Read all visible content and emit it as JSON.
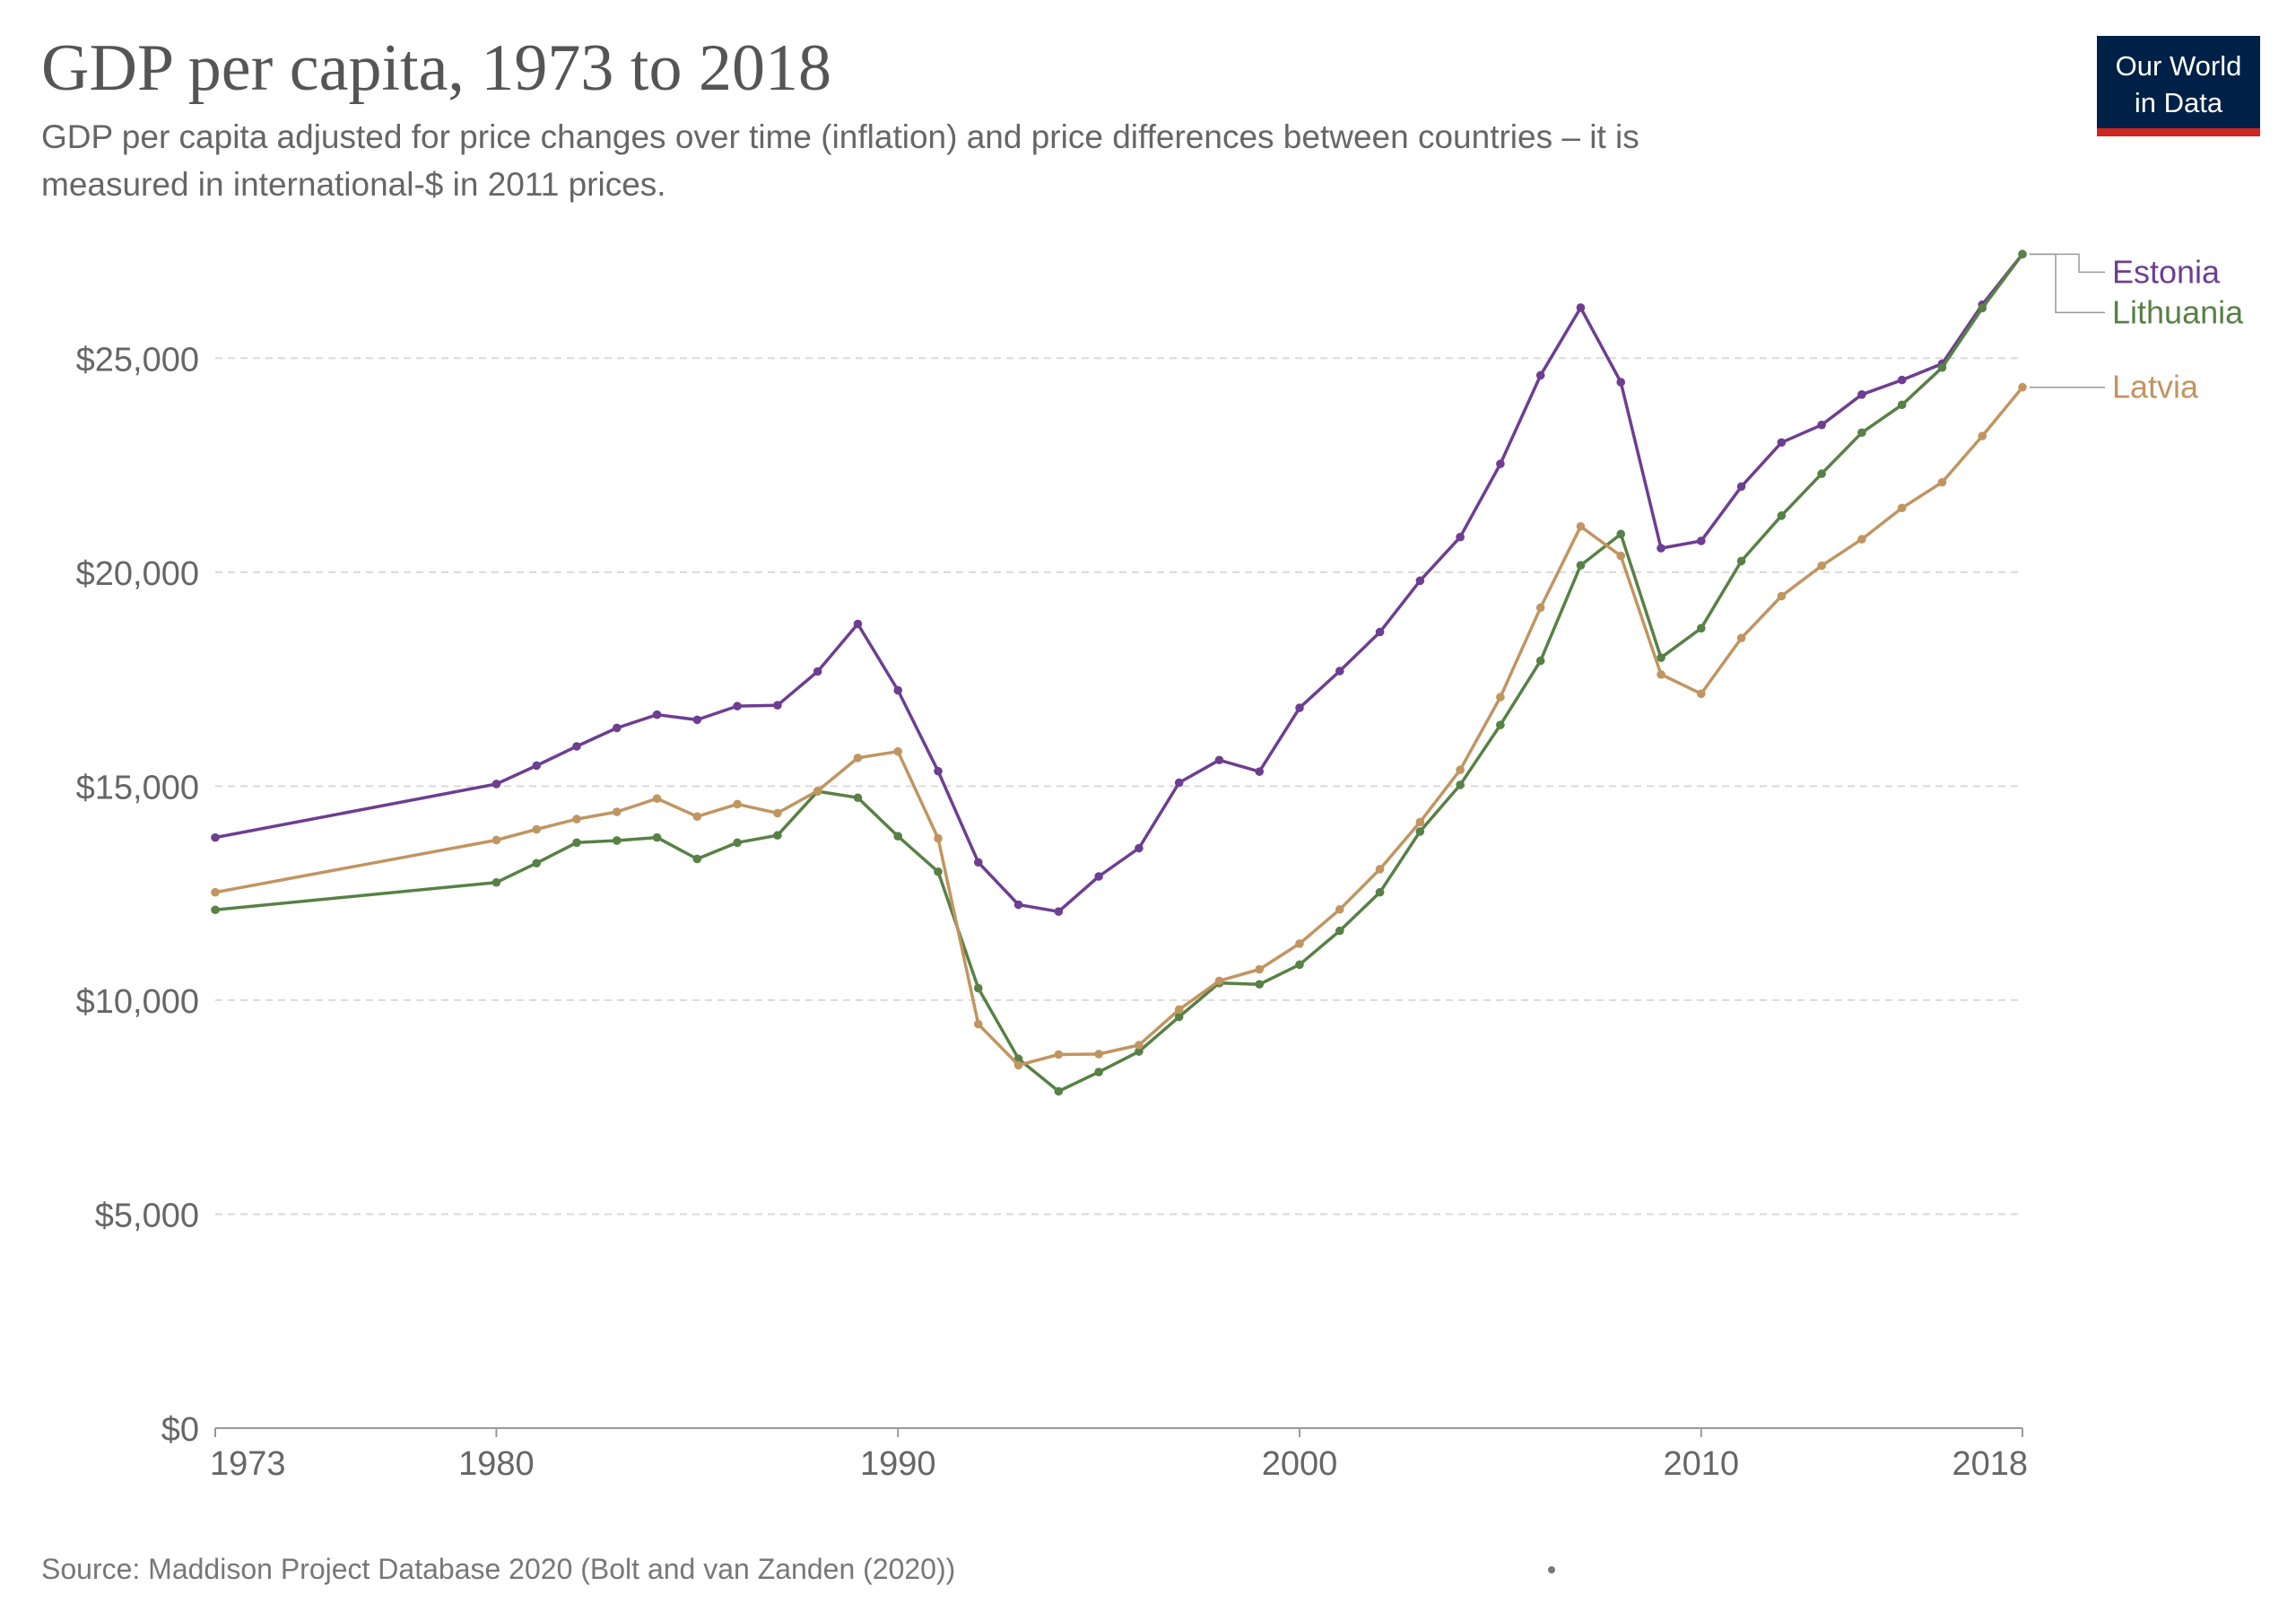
{
  "header": {
    "title": "GDP per capita, 1973 to 2018",
    "subtitle_line1": "GDP per capita adjusted for price changes over time (inflation) and price differences between countries – it is",
    "subtitle_line2": "measured in international-$ in 2011 prices."
  },
  "logo": {
    "line1": "Our World",
    "line2": "in Data",
    "bg_color": "#002147",
    "accent_color": "#ce261e"
  },
  "footer": {
    "source": "Source: Maddison Project Database 2020 (Bolt and van Zanden (2020))"
  },
  "chart_data": {
    "type": "line",
    "title": "GDP per capita, 1973 to 2018",
    "xlabel": "",
    "ylabel": "",
    "xlim": [
      1973,
      2018
    ],
    "ylim": [
      0,
      27500
    ],
    "grid": "horizontal dashed",
    "legend_placement": "right (end of lines)",
    "x_ticks": [
      1973,
      1980,
      1990,
      2000,
      2010,
      2018
    ],
    "x_tick_labels": [
      "1973",
      "1980",
      "1990",
      "2000",
      "2010",
      "2018"
    ],
    "y_ticks": [
      0,
      5000,
      10000,
      15000,
      20000,
      25000
    ],
    "y_tick_labels": [
      "$0",
      "$5,000",
      "$10,000",
      "$15,000",
      "$20,000",
      "$25,000"
    ],
    "x": [
      1973,
      1980,
      1981,
      1982,
      1983,
      1984,
      1985,
      1986,
      1987,
      1988,
      1989,
      1990,
      1991,
      1992,
      1993,
      1994,
      1995,
      1996,
      1997,
      1998,
      1999,
      2000,
      2001,
      2002,
      2003,
      2004,
      2005,
      2006,
      2007,
      2008,
      2009,
      2010,
      2011,
      2012,
      2013,
      2014,
      2015,
      2016,
      2017,
      2018
    ],
    "series": [
      {
        "name": "Estonia",
        "color": "#6d3e91",
        "values": [
          13800,
          15050,
          15480,
          15930,
          16360,
          16670,
          16550,
          16870,
          16890,
          17680,
          18790,
          17240,
          15350,
          13220,
          12230,
          12070,
          12890,
          13550,
          15080,
          15610,
          15340,
          16830,
          17690,
          18600,
          19800,
          20820,
          22530,
          24600,
          26180,
          24440,
          20560,
          20730,
          22000,
          23030,
          23440,
          24150,
          24490,
          24870,
          26250,
          27430
        ]
      },
      {
        "name": "Lithuania",
        "color": "#578145",
        "values": [
          12110,
          12750,
          13200,
          13680,
          13730,
          13800,
          13300,
          13680,
          13850,
          14880,
          14730,
          13830,
          13000,
          10280,
          8630,
          7870,
          8320,
          8800,
          9610,
          10400,
          10370,
          10830,
          11620,
          12520,
          13940,
          15030,
          16430,
          17930,
          20160,
          20890,
          18000,
          18690,
          20260,
          21320,
          22300,
          23260,
          23910,
          24780,
          26170,
          27430
        ]
      },
      {
        "name": "Latvia",
        "color": "#c09560",
        "values": [
          12520,
          13740,
          13990,
          14230,
          14400,
          14710,
          14290,
          14580,
          14370,
          14890,
          15660,
          15810,
          13780,
          9440,
          8480,
          8730,
          8740,
          8950,
          9780,
          10450,
          10720,
          11320,
          12120,
          13060,
          14160,
          15380,
          17080,
          19170,
          21070,
          20380,
          17610,
          17160,
          18460,
          19440,
          20150,
          20770,
          21500,
          22100,
          23180,
          24320
        ]
      }
    ]
  }
}
